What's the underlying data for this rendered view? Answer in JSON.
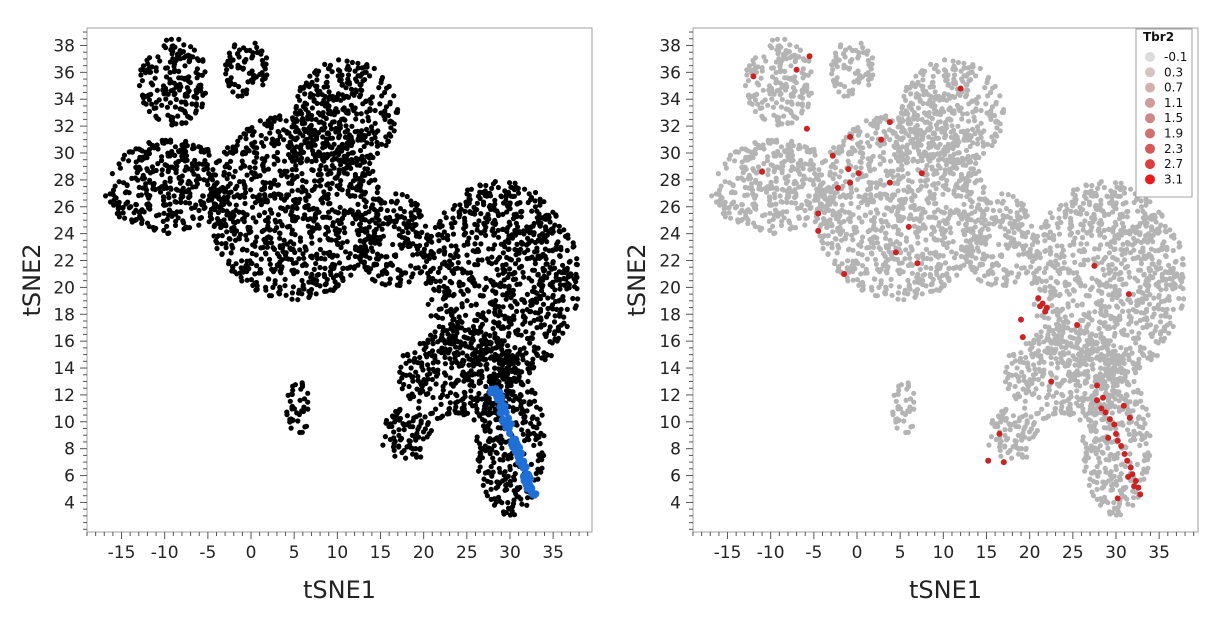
{
  "chart_data": [
    {
      "type": "scatter",
      "xlabel": "tSNE1",
      "ylabel": "tSNE2",
      "xlim": [
        -19,
        39.5
      ],
      "ylim": [
        1.8,
        39.3
      ],
      "x_ticks": [
        -15,
        -10,
        -5,
        0,
        5,
        10,
        15,
        20,
        25,
        30,
        35
      ],
      "y_ticks": [
        4,
        6,
        8,
        10,
        12,
        14,
        16,
        18,
        20,
        22,
        24,
        26,
        28,
        30,
        32,
        34,
        36,
        38
      ],
      "grid": false,
      "colors": {
        "background_points": "#000000",
        "highlight_points": "#1f6fd6"
      },
      "series": [
        {
          "role": "all cells",
          "regions": [
            {
              "x": [
                -13,
                -5
              ],
              "y": [
                32,
                38.5
              ]
            },
            {
              "x": [
                -3,
                2
              ],
              "y": [
                34,
                38.5
              ]
            },
            {
              "x": [
                -17,
                -2
              ],
              "y": [
                24,
                31
              ]
            },
            {
              "x": [
                -5,
                15
              ],
              "y": [
                19,
                33
              ]
            },
            {
              "x": [
                5,
                17
              ],
              "y": [
                29,
                37
              ]
            },
            {
              "x": [
                12,
                21
              ],
              "y": [
                20,
                27
              ]
            },
            {
              "x": [
                20,
                38
              ],
              "y": [
                13,
                28
              ]
            },
            {
              "x": [
                17,
                31
              ],
              "y": [
                10,
                17
              ]
            },
            {
              "x": [
                26,
                34
              ],
              "y": [
                3,
                14
              ]
            },
            {
              "x": [
                4,
                7
              ],
              "y": [
                9,
                13
              ]
            },
            {
              "x": [
                15,
                21
              ],
              "y": [
                7,
                11
              ]
            }
          ]
        },
        {
          "role": "highlighted trajectory",
          "points": [
            [
              28,
              12.8
            ],
            [
              28.8,
              11.5
            ],
            [
              29.5,
              10.2
            ],
            [
              30,
              9.2
            ],
            [
              30.8,
              8
            ],
            [
              31.5,
              6.8
            ],
            [
              32,
              5.6
            ],
            [
              32.8,
              4.6
            ]
          ]
        }
      ]
    },
    {
      "type": "scatter",
      "xlabel": "tSNE1",
      "ylabel": "tSNE2",
      "xlim": [
        -19,
        39.5
      ],
      "ylim": [
        1.8,
        39.3
      ],
      "x_ticks": [
        -15,
        -10,
        -5,
        0,
        5,
        10,
        15,
        20,
        25,
        30,
        35
      ],
      "y_ticks": [
        4,
        6,
        8,
        10,
        12,
        14,
        16,
        18,
        20,
        22,
        24,
        26,
        28,
        30,
        32,
        34,
        36,
        38
      ],
      "grid": false,
      "legend": {
        "title": "Tbr2",
        "position": "top-right",
        "entries": [
          "-0.1",
          "0.3",
          "0.7",
          "1.1",
          "1.5",
          "1.9",
          "2.3",
          "2.7",
          "3.1"
        ],
        "colors": [
          "#dcdcdc",
          "#d6c4c4",
          "#d2b0b0",
          "#d09b9b",
          "#cf8686",
          "#d07171",
          "#d45a5a",
          "#dc3d3d",
          "#e81c1c"
        ]
      },
      "colors": {
        "background_points": "#b4b4b4",
        "expressing_points": "#cc2222"
      },
      "expressing_cells": [
        [
          -12,
          35.7
        ],
        [
          -7,
          36.2
        ],
        [
          -5.5,
          37.2
        ],
        [
          -5.8,
          31.8
        ],
        [
          -2.8,
          29.8
        ],
        [
          -1,
          28.8
        ],
        [
          -0.8,
          27.8
        ],
        [
          -0.8,
          31.2
        ],
        [
          0.2,
          28.5
        ],
        [
          2.8,
          31.0
        ],
        [
          3.8,
          32.3
        ],
        [
          3.8,
          27.8
        ],
        [
          -2.2,
          27.4
        ],
        [
          -4.5,
          25.5
        ],
        [
          -4.5,
          24.2
        ],
        [
          -11,
          28.6
        ],
        [
          -1.5,
          21
        ],
        [
          4.5,
          22.6
        ],
        [
          6,
          24.5
        ],
        [
          7.5,
          28.5
        ],
        [
          7,
          21.8
        ],
        [
          12,
          34.8
        ],
        [
          19,
          17.6
        ],
        [
          19.2,
          16.3
        ],
        [
          21,
          19.2
        ],
        [
          21.5,
          18.8
        ],
        [
          21.8,
          18.2
        ],
        [
          22,
          18.5
        ],
        [
          21.2,
          18.6
        ],
        [
          25.5,
          17.2
        ],
        [
          27.5,
          21.6
        ],
        [
          31.5,
          19.5
        ],
        [
          22.5,
          13
        ],
        [
          16.5,
          9.1
        ],
        [
          15.2,
          7.1
        ],
        [
          17,
          7
        ],
        [
          27.8,
          12.7
        ],
        [
          27.8,
          11.6
        ],
        [
          28.5,
          11.8
        ],
        [
          28.3,
          11
        ],
        [
          28.8,
          10.7
        ],
        [
          29.3,
          10.2
        ],
        [
          29.8,
          9.8
        ],
        [
          30,
          9.1
        ],
        [
          30.2,
          8.6
        ],
        [
          30.6,
          8.2
        ],
        [
          31,
          7.6
        ],
        [
          31.3,
          7.1
        ],
        [
          31.7,
          6.6
        ],
        [
          31.9,
          6.1
        ],
        [
          32.3,
          5.6
        ],
        [
          32.6,
          5.1
        ],
        [
          32.8,
          4.6
        ],
        [
          30.2,
          4.3
        ],
        [
          32.1,
          5.2
        ],
        [
          31.4,
          5.9
        ],
        [
          30.9,
          11.2
        ],
        [
          31.6,
          10.3
        ],
        [
          29.1,
          8.8
        ]
      ]
    }
  ]
}
